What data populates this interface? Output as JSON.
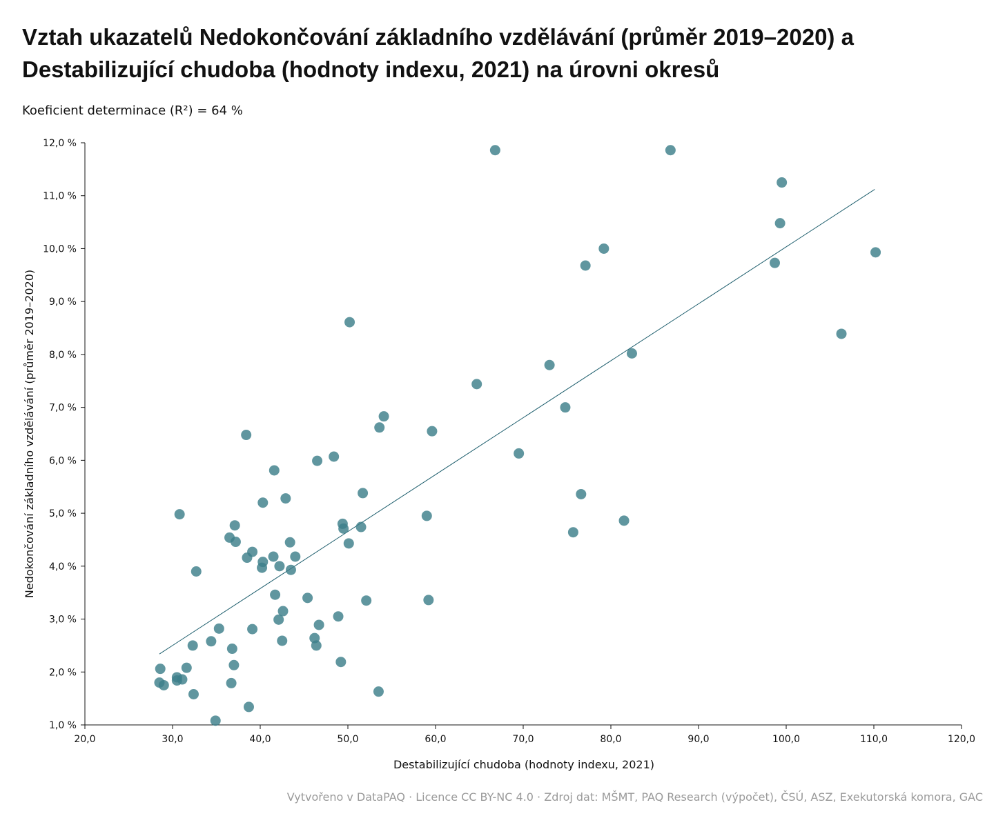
{
  "header": {
    "title": "Vztah ukazatelů Nedokončování základního vzdělávání (průměr 2019–2020) a Destabilizující chudoba (hodnoty indexu, 2021) na úrovni okresů",
    "subtitle": "Koeficient determinace (R²) = 64 %"
  },
  "footer": {
    "text": "Vytvořeno v DataPAQ  ·  Licence CC BY-NC 4.0  ·  Zdroj dat: MŠMT, PAQ Research (výpočet), ČSÚ, ASZ, Exekutorská komora, GAC"
  },
  "colors": {
    "point": "#3d7f8a",
    "trend": "#1f5f6e",
    "axis": "#111111"
  },
  "chart_data": {
    "type": "scatter",
    "xlabel": "Destabilizující chudoba (hodnoty indexu, 2021)",
    "ylabel": "Nedokončování základního vzdělávání (průměr 2019–2020)",
    "xlim": [
      20,
      120
    ],
    "ylim": [
      1,
      12
    ],
    "x_ticks": [
      20,
      30,
      40,
      50,
      60,
      70,
      80,
      90,
      100,
      110,
      120
    ],
    "y_ticks": [
      1,
      2,
      3,
      4,
      5,
      6,
      7,
      8,
      9,
      10,
      11,
      12
    ],
    "x_tick_labels": [
      "20,0",
      "30,0",
      "40,0",
      "50,0",
      "60,0",
      "70,0",
      "80,0",
      "90,0",
      "100,0",
      "110,0",
      "120,0"
    ],
    "y_tick_labels": [
      "1,0 %",
      "2,0 %",
      "3,0 %",
      "4,0 %",
      "5,0 %",
      "6,0 %",
      "7,0 %",
      "8,0 %",
      "9,0 %",
      "10,0 %",
      "11,0 %",
      "12,0 %"
    ],
    "grid": false,
    "trendline": {
      "x": [
        28.5,
        110.1
      ],
      "y": [
        2.34,
        11.12
      ]
    },
    "points": [
      {
        "x": 66.8,
        "y": 11.86
      },
      {
        "x": 86.8,
        "y": 11.86
      },
      {
        "x": 99.5,
        "y": 11.25
      },
      {
        "x": 99.3,
        "y": 10.48
      },
      {
        "x": 79.2,
        "y": 10.0
      },
      {
        "x": 77.1,
        "y": 9.68
      },
      {
        "x": 98.7,
        "y": 9.73
      },
      {
        "x": 110.2,
        "y": 9.93
      },
      {
        "x": 50.2,
        "y": 8.61
      },
      {
        "x": 106.3,
        "y": 8.39
      },
      {
        "x": 82.4,
        "y": 8.02
      },
      {
        "x": 73.0,
        "y": 7.8
      },
      {
        "x": 64.7,
        "y": 7.44
      },
      {
        "x": 74.8,
        "y": 7.0
      },
      {
        "x": 54.1,
        "y": 6.83
      },
      {
        "x": 53.6,
        "y": 6.62
      },
      {
        "x": 59.6,
        "y": 6.55
      },
      {
        "x": 38.4,
        "y": 6.48
      },
      {
        "x": 69.5,
        "y": 6.13
      },
      {
        "x": 48.4,
        "y": 6.07
      },
      {
        "x": 46.5,
        "y": 5.99
      },
      {
        "x": 41.6,
        "y": 5.81
      },
      {
        "x": 51.7,
        "y": 5.38
      },
      {
        "x": 76.6,
        "y": 5.36
      },
      {
        "x": 42.9,
        "y": 5.28
      },
      {
        "x": 40.3,
        "y": 5.2
      },
      {
        "x": 30.8,
        "y": 4.98
      },
      {
        "x": 59.0,
        "y": 4.95
      },
      {
        "x": 81.5,
        "y": 4.86
      },
      {
        "x": 49.4,
        "y": 4.8
      },
      {
        "x": 37.1,
        "y": 4.77
      },
      {
        "x": 51.5,
        "y": 4.74
      },
      {
        "x": 49.5,
        "y": 4.71
      },
      {
        "x": 75.7,
        "y": 4.64
      },
      {
        "x": 36.5,
        "y": 4.54
      },
      {
        "x": 37.2,
        "y": 4.46
      },
      {
        "x": 43.4,
        "y": 4.45
      },
      {
        "x": 50.1,
        "y": 4.43
      },
      {
        "x": 39.1,
        "y": 4.27
      },
      {
        "x": 41.5,
        "y": 4.18
      },
      {
        "x": 44.0,
        "y": 4.18
      },
      {
        "x": 38.5,
        "y": 4.16
      },
      {
        "x": 40.3,
        "y": 4.08
      },
      {
        "x": 42.2,
        "y": 4.0
      },
      {
        "x": 40.2,
        "y": 3.97
      },
      {
        "x": 43.5,
        "y": 3.93
      },
      {
        "x": 32.7,
        "y": 3.9
      },
      {
        "x": 41.7,
        "y": 3.46
      },
      {
        "x": 45.4,
        "y": 3.4
      },
      {
        "x": 52.1,
        "y": 3.35
      },
      {
        "x": 59.2,
        "y": 3.36
      },
      {
        "x": 42.6,
        "y": 3.15
      },
      {
        "x": 48.9,
        "y": 3.05
      },
      {
        "x": 42.1,
        "y": 2.99
      },
      {
        "x": 46.7,
        "y": 2.89
      },
      {
        "x": 35.3,
        "y": 2.82
      },
      {
        "x": 39.1,
        "y": 2.81
      },
      {
        "x": 46.2,
        "y": 2.64
      },
      {
        "x": 34.4,
        "y": 2.58
      },
      {
        "x": 42.5,
        "y": 2.59
      },
      {
        "x": 32.3,
        "y": 2.5
      },
      {
        "x": 46.4,
        "y": 2.5
      },
      {
        "x": 36.8,
        "y": 2.44
      },
      {
        "x": 49.2,
        "y": 2.19
      },
      {
        "x": 37.0,
        "y": 2.13
      },
      {
        "x": 28.6,
        "y": 2.06
      },
      {
        "x": 31.6,
        "y": 2.08
      },
      {
        "x": 30.5,
        "y": 1.9
      },
      {
        "x": 30.5,
        "y": 1.84
      },
      {
        "x": 31.1,
        "y": 1.86
      },
      {
        "x": 28.5,
        "y": 1.8
      },
      {
        "x": 29.0,
        "y": 1.75
      },
      {
        "x": 36.7,
        "y": 1.79
      },
      {
        "x": 32.4,
        "y": 1.58
      },
      {
        "x": 53.5,
        "y": 1.63
      },
      {
        "x": 38.7,
        "y": 1.34
      },
      {
        "x": 34.9,
        "y": 1.08
      }
    ]
  }
}
